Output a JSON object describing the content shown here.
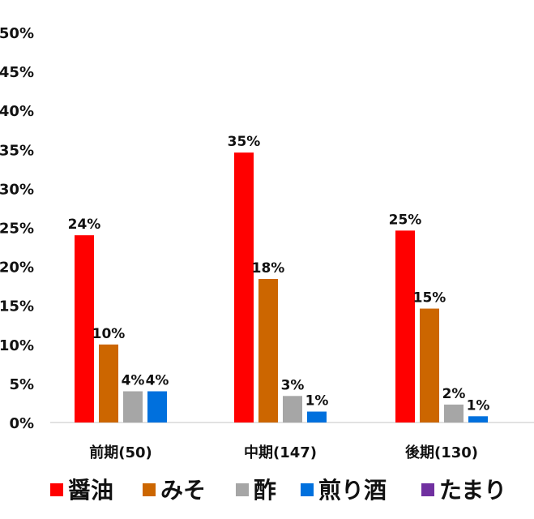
{
  "chart_data": {
    "type": "bar",
    "categories": [
      "前期(50)",
      "中期(147)",
      "後期(130)"
    ],
    "series": [
      {
        "name": "醤油",
        "color": "#ff0000",
        "values": [
          24,
          34.6,
          24.6
        ],
        "labels": [
          "24%",
          "35%",
          "25%"
        ]
      },
      {
        "name": "みそ",
        "color": "#cc6600",
        "values": [
          10,
          18.4,
          14.6
        ],
        "labels": [
          "10%",
          "18%",
          "15%"
        ]
      },
      {
        "name": "酢",
        "color": "#a6a6a6",
        "values": [
          4,
          3.4,
          2.3
        ],
        "labels": [
          "4%",
          "3%",
          "2%"
        ]
      },
      {
        "name": "煎り酒",
        "color": "#0070dd",
        "values": [
          4,
          1.4,
          0.8
        ],
        "labels": [
          "4%",
          "1%",
          "1%"
        ]
      },
      {
        "name": "たまり",
        "color": "#7030a0",
        "values": [
          0,
          0,
          0
        ],
        "labels": [
          "",
          "",
          ""
        ]
      }
    ],
    "y_ticks": [
      "0%",
      "5%",
      "10%",
      "15%",
      "20%",
      "25%",
      "30%",
      "35%",
      "40%",
      "45%",
      "50%"
    ],
    "ylim": [
      0,
      50
    ],
    "grid": false,
    "legend_position": "bottom",
    "title": "",
    "xlabel": "",
    "ylabel": ""
  }
}
